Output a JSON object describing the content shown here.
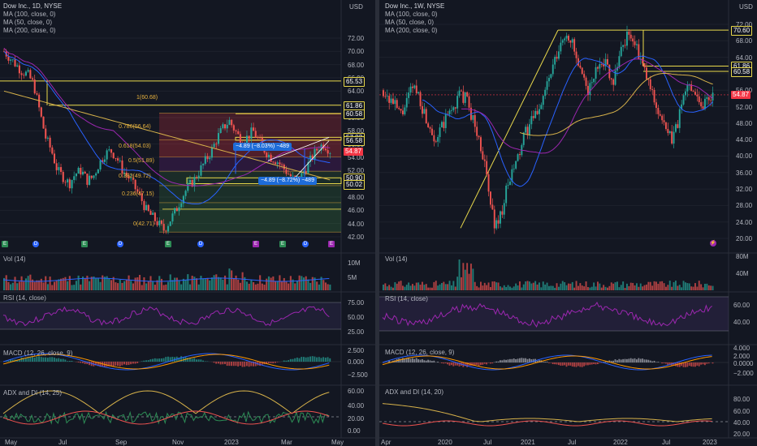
{
  "left": {
    "title": "Dow Inc., 1D, NYSE",
    "currency": "USD",
    "indicators": [
      "MA (100, close, 0)",
      "MA (50, close, 0)",
      "MA (200, close, 0)"
    ],
    "price_axis": [
      "72.00",
      "70.00",
      "68.00",
      "66.00",
      "64.00",
      "62.00",
      "60.00",
      "58.00",
      "56.00",
      "54.00",
      "52.00",
      "50.00",
      "48.00",
      "46.00",
      "44.00",
      "42.00"
    ],
    "price_tags": [
      {
        "value": "65.53",
        "type": "yellow"
      },
      {
        "value": "61.86",
        "type": "yellow"
      },
      {
        "value": "60.58",
        "type": "yellow"
      },
      {
        "value": "57.02",
        "type": "yellow"
      },
      {
        "value": "56.58",
        "type": "yellow"
      },
      {
        "value": "54.87",
        "type": "red"
      },
      {
        "value": "50.90",
        "type": "yellow"
      },
      {
        "value": "50.02",
        "type": "yellow"
      }
    ],
    "fib_labels": [
      "1(60.68)",
      "0.786(56.64)",
      "0.618(54.03)",
      "0.5(51.89)",
      "0.382(49.72)",
      "0.236(47.15)",
      "0(42.71)"
    ],
    "callouts": [
      "−4.89 (−8.03%) −489",
      "−4.89 (−8.72%) −489"
    ],
    "events": [
      "E",
      "D",
      "E",
      "D",
      "E",
      "D",
      "E",
      "E",
      "D",
      "E"
    ],
    "time_axis": [
      "May",
      "Jul",
      "Sep",
      "Nov",
      "2023",
      "Mar",
      "May"
    ],
    "vol_title": "Vol (14)",
    "vol_axis": [
      "10M",
      "5M"
    ],
    "rsi_title": "RSI (14, close)",
    "rsi_axis": [
      "75.00",
      "50.00",
      "25.00"
    ],
    "macd_title": "MACD (12, 26, close, 9)",
    "macd_axis": [
      "2.500",
      "0.000",
      "−2.500"
    ],
    "adx_title": "ADX and DI (14, 25)",
    "adx_axis": [
      "60.00",
      "40.00",
      "20.00",
      "0.00"
    ]
  },
  "right": {
    "title": "Dow Inc., 1W, NYSE",
    "currency": "USD",
    "indicators": [
      "MA (100, close, 0)",
      "MA (50, close, 0)",
      "MA (200, close, 0)"
    ],
    "price_axis": [
      "72.00",
      "68.00",
      "64.00",
      "60.00",
      "56.00",
      "52.00",
      "48.00",
      "44.00",
      "40.00",
      "36.00",
      "32.00",
      "28.00",
      "24.00",
      "20.00"
    ],
    "price_tags": [
      {
        "value": "70.60",
        "type": "yellow"
      },
      {
        "value": "61.86",
        "type": "yellow"
      },
      {
        "value": "60.58",
        "type": "yellow"
      },
      {
        "value": "54.87",
        "type": "red"
      }
    ],
    "time_axis": [
      "Apr",
      "2020",
      "Jul",
      "2021",
      "Jul",
      "2022",
      "Jul",
      "2023"
    ],
    "vol_title": "Vol (14)",
    "vol_axis": [
      "80M",
      "40M"
    ],
    "rsi_title": "RSI (14, close)",
    "rsi_axis": [
      "60.00",
      "40.00"
    ],
    "macd_title": "MACD (12, 26, close, 9)",
    "macd_axis": [
      "4.000",
      "2.000",
      "0.0000",
      "−2.000"
    ],
    "adx_title": "ADX and DI (14, 20)",
    "adx_axis": [
      "80.00",
      "60.00",
      "40.00",
      "20.00"
    ]
  },
  "colors": {
    "up": "#26a69a",
    "down": "#ef5350",
    "yellow": "#e8d84b",
    "ma100": "#9c27b0",
    "ma50": "#2962ff",
    "ma200": "#d7b24a",
    "background": "#131722"
  }
}
